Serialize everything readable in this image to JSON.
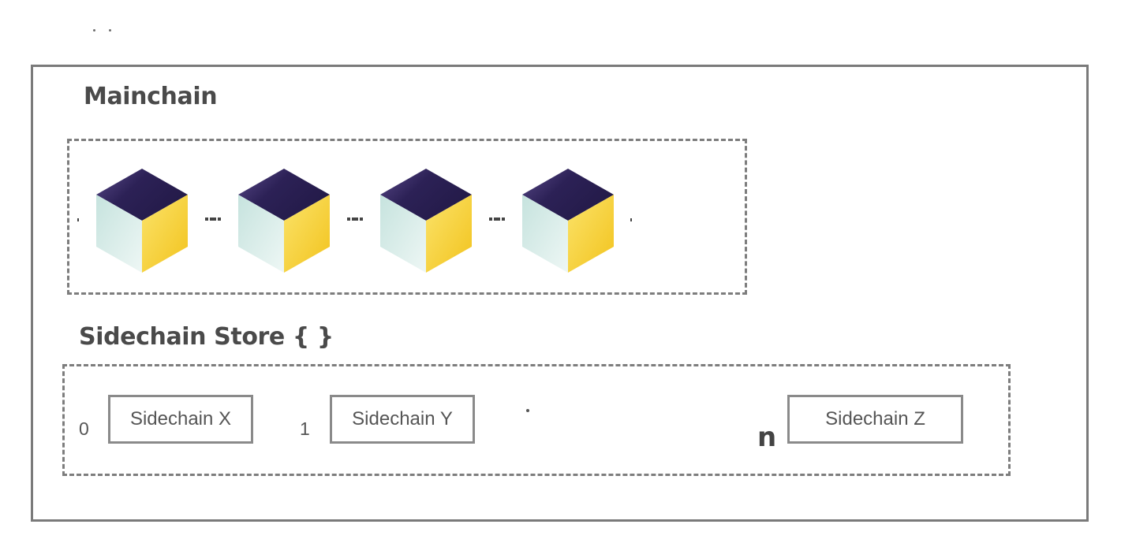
{
  "mainchain": {
    "title": "Mainchain",
    "blocks": [
      {
        "icon": "block-cube-icon"
      },
      {
        "icon": "block-cube-icon"
      },
      {
        "icon": "block-cube-icon"
      },
      {
        "icon": "block-cube-icon"
      }
    ]
  },
  "sidechain_store": {
    "title": "Sidechain Store { }",
    "entries": [
      {
        "index": "0",
        "label": "Sidechain X"
      },
      {
        "index": "1",
        "label": "Sidechain Y"
      },
      {
        "index": "n",
        "label": "Sidechain Z"
      }
    ]
  },
  "colors": {
    "cube_top": "#2c2156",
    "cube_left": "#d4ece8",
    "cube_right": "#f5cc2a",
    "frame": "#7a7a7a"
  }
}
